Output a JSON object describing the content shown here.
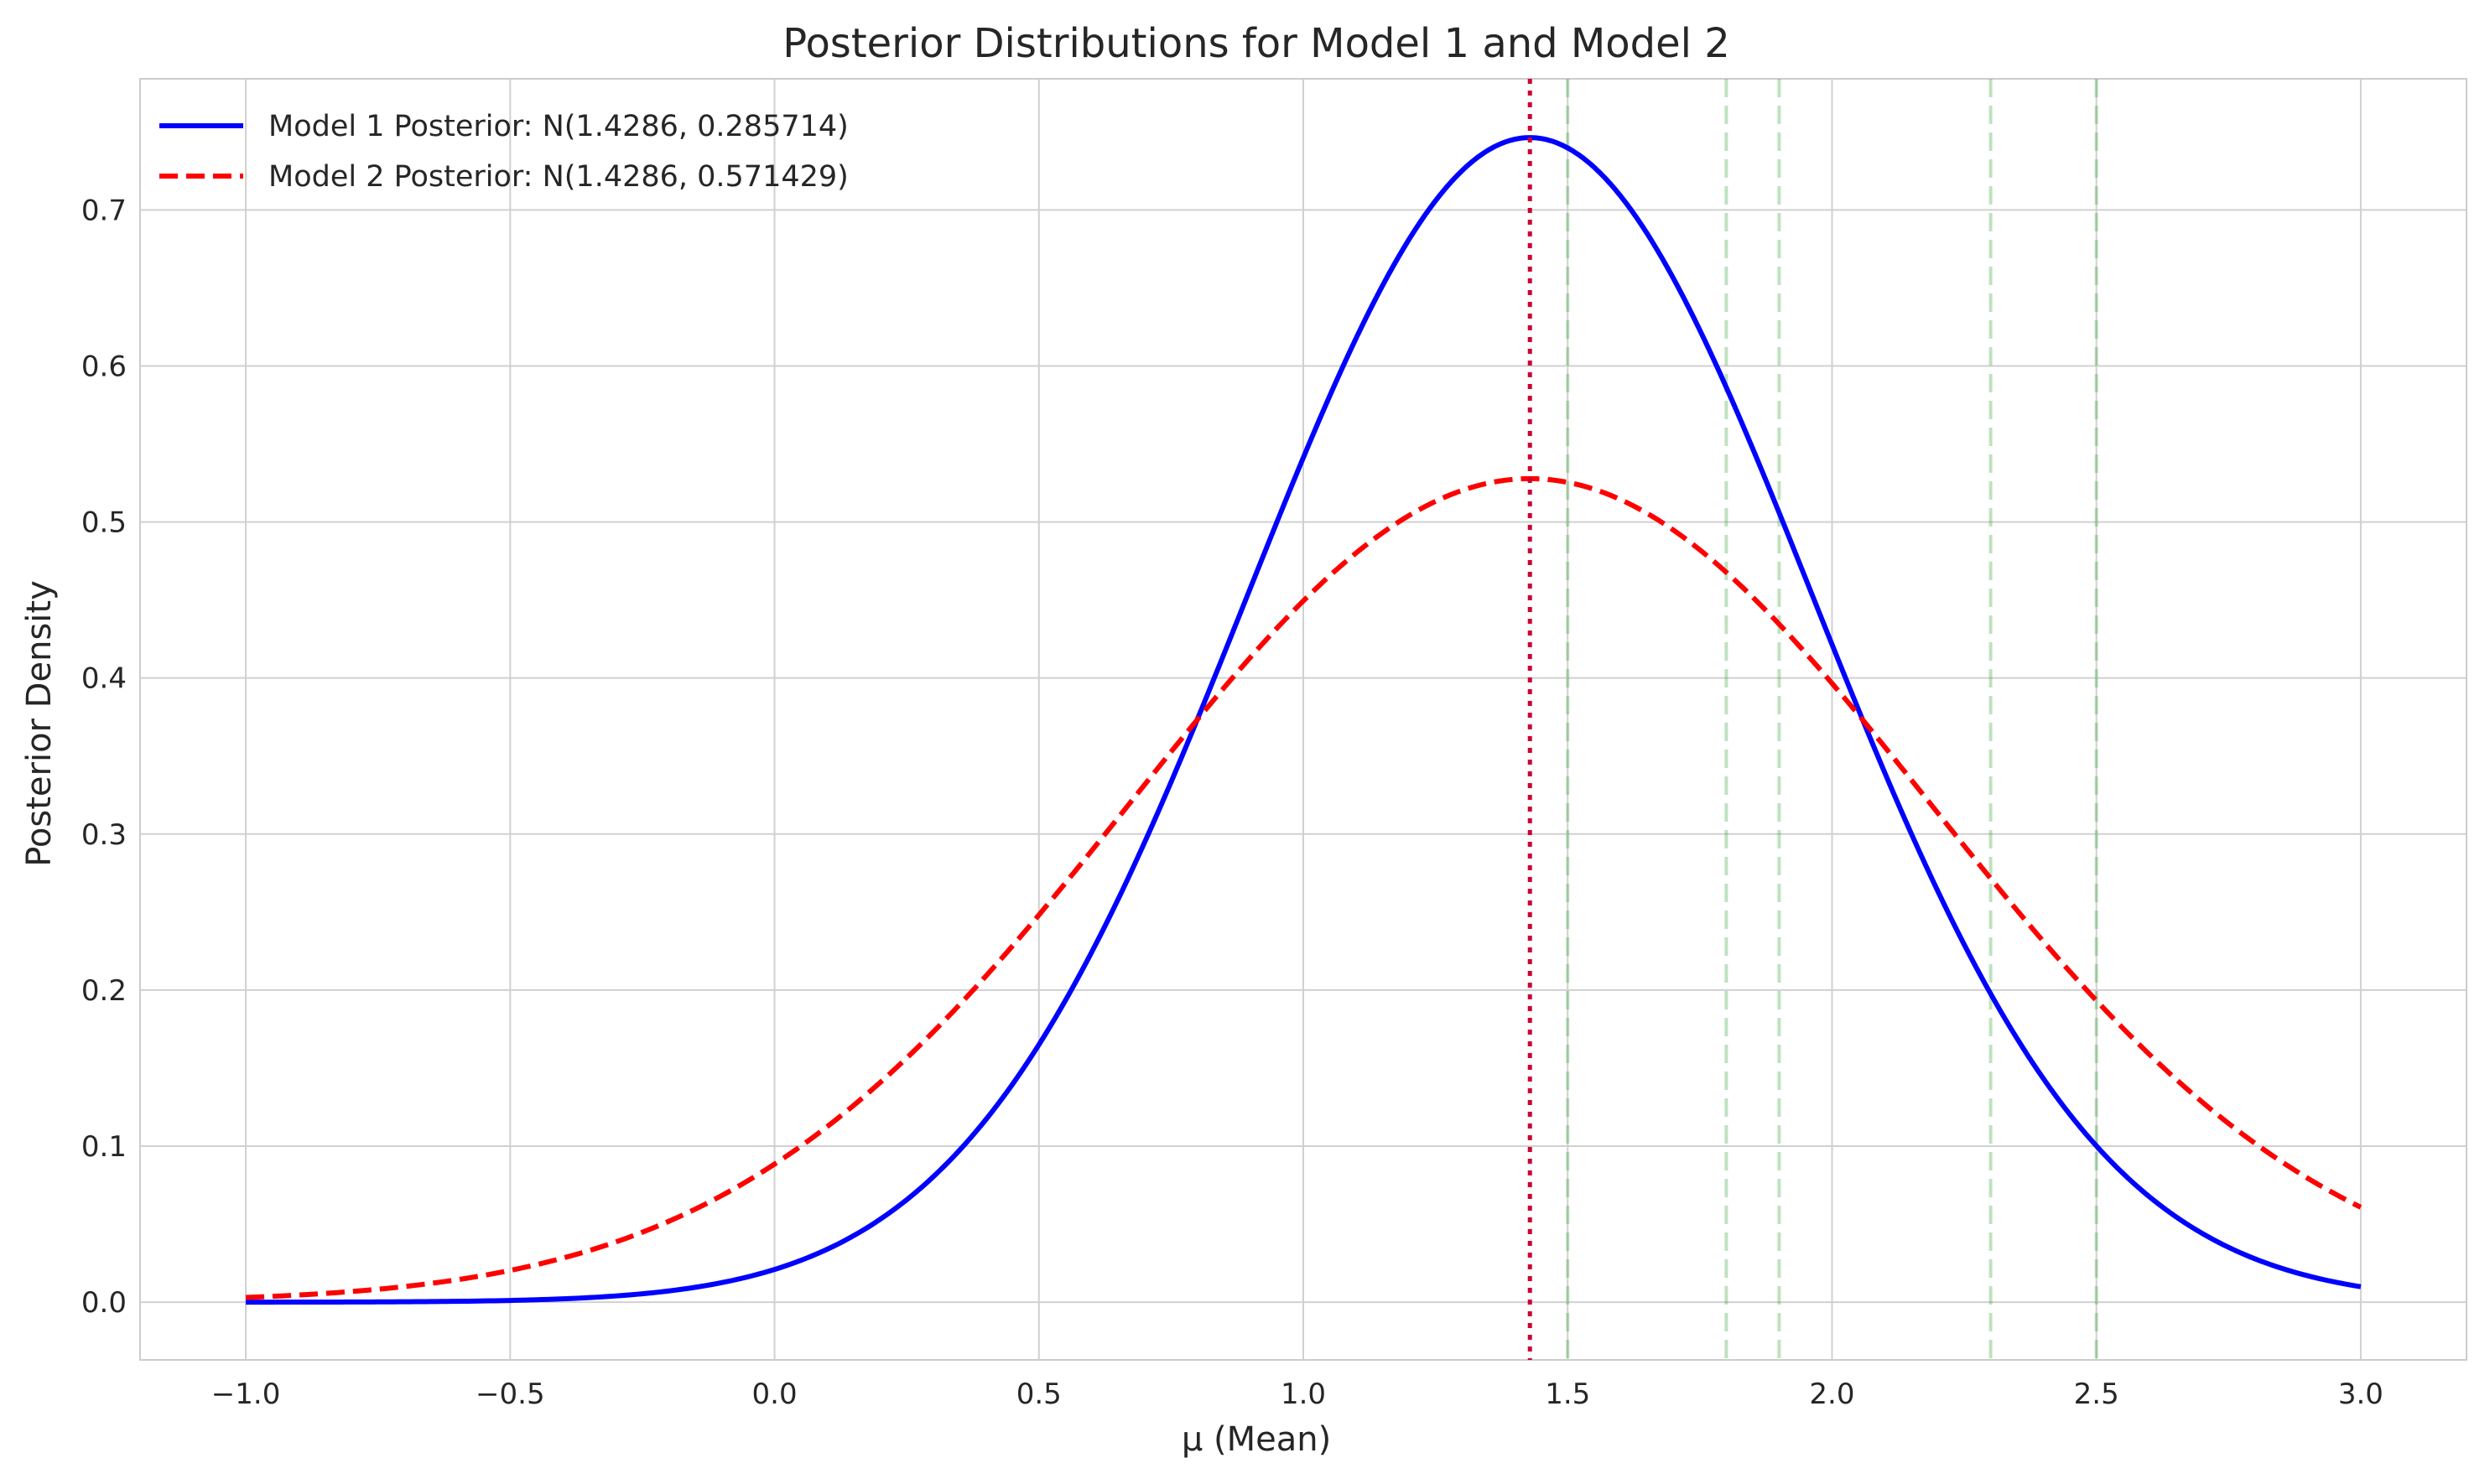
{
  "chart_data": {
    "type": "line",
    "title": "Posterior Distributions for Model 1 and Model 2",
    "xlabel": "μ (Mean)",
    "ylabel": "Posterior Density",
    "xlim": [
      -1.2,
      3.2
    ],
    "ylim": [
      -0.037,
      0.784
    ],
    "x_range": [
      -1.0,
      3.0
    ],
    "x_ticks": [
      -1.0,
      -0.5,
      0.0,
      0.5,
      1.0,
      1.5,
      2.0,
      2.5,
      3.0
    ],
    "x_tick_labels": [
      "−1.0",
      "−0.5",
      "0.0",
      "0.5",
      "1.0",
      "1.5",
      "2.0",
      "2.5",
      "3.0"
    ],
    "y_ticks": [
      0.0,
      0.1,
      0.2,
      0.3,
      0.4,
      0.5,
      0.6,
      0.7
    ],
    "y_tick_labels": [
      "0.0",
      "0.1",
      "0.2",
      "0.3",
      "0.4",
      "0.5",
      "0.6",
      "0.7"
    ],
    "grid": true,
    "legend_position": "top-left",
    "series": [
      {
        "name": "Model 1 Posterior: N(1.4286, 0.285714)",
        "distribution": "normal",
        "mean": 1.4286,
        "variance": 0.285714,
        "color": "#0000ff",
        "style": "solid"
      },
      {
        "name": "Model 2 Posterior: N(1.4286, 0.571429)",
        "distribution": "normal",
        "mean": 1.4286,
        "variance": 0.571429,
        "color": "#ff0000",
        "style": "dashed"
      }
    ],
    "posterior_mean_line": {
      "x": 1.4286,
      "color": "#cc0033",
      "style": "dotted"
    },
    "data_lines": {
      "x": [
        1.5,
        1.8,
        1.9,
        2.3,
        2.5
      ],
      "color": "#2ca02c",
      "style": "dashed"
    }
  }
}
